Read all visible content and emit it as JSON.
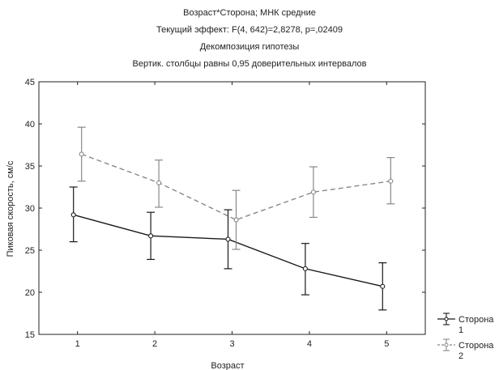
{
  "chart_data": {
    "type": "line",
    "title_lines": [
      "Возраст*Сторона; МНК средние",
      "Текущий эффект: F(4, 642)=2,8278, p=,02409",
      "Декомпозиция гипотезы",
      "Вертик. столбцы равны 0,95 доверительных интервалов"
    ],
    "xlabel": "Возраст",
    "ylabel": "Пиковая скорость, см/с",
    "x": [
      1,
      2,
      3,
      4,
      5
    ],
    "x_ticks": [
      "1",
      "2",
      "3",
      "4",
      "5"
    ],
    "ylim": [
      15,
      45
    ],
    "y_ticks": [
      "15",
      "20",
      "25",
      "30",
      "35",
      "40",
      "45"
    ],
    "grid": false,
    "legend_position": "bottom-right",
    "series": [
      {
        "name_line1": "Сторона",
        "name_line2": "1",
        "values": [
          29.2,
          26.7,
          26.3,
          22.8,
          20.7
        ],
        "ci_low": [
          26.0,
          23.9,
          22.8,
          19.7,
          17.9
        ],
        "ci_high": [
          32.5,
          29.5,
          29.8,
          25.8,
          23.5
        ],
        "color": "#1a1a1a",
        "dash": "solid"
      },
      {
        "name_line1": "Сторона",
        "name_line2": "2",
        "values": [
          36.4,
          33.0,
          28.6,
          31.9,
          33.2
        ],
        "ci_low": [
          33.2,
          30.1,
          25.1,
          28.9,
          30.5
        ],
        "ci_high": [
          39.6,
          35.7,
          32.1,
          34.9,
          36.0
        ],
        "color": "#888888",
        "dash": "dashed"
      }
    ]
  }
}
